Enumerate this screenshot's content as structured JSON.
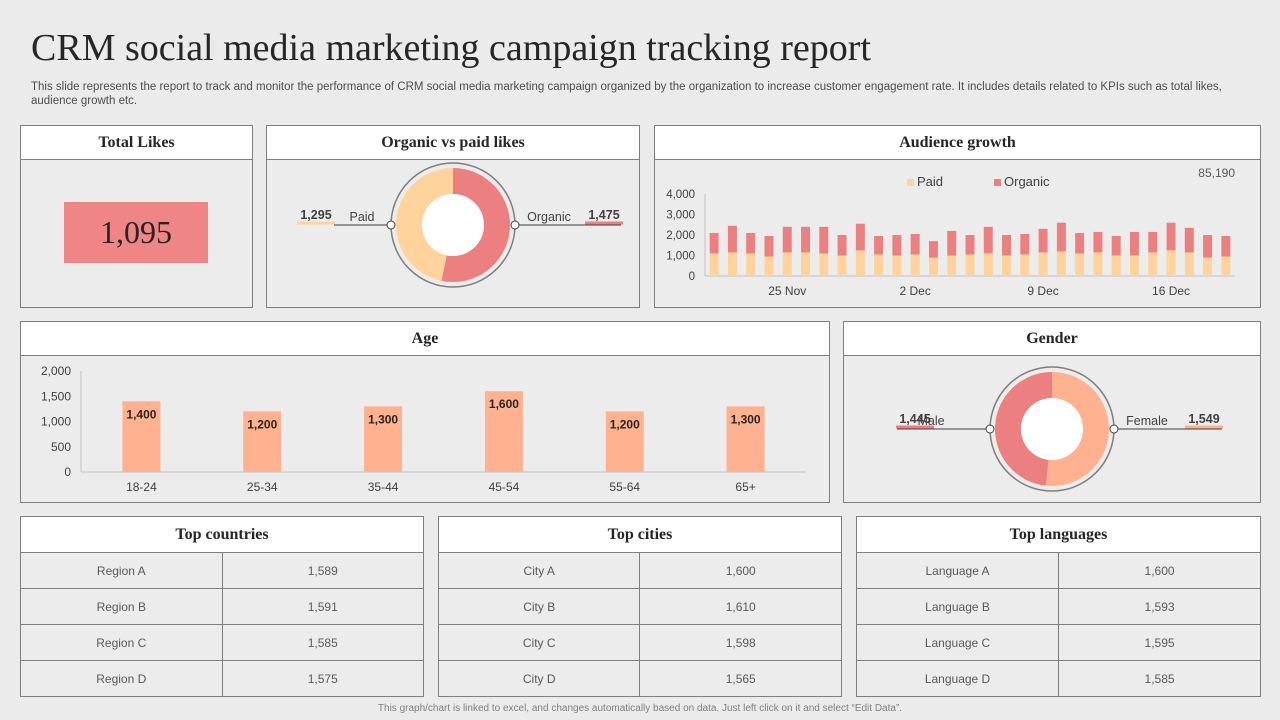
{
  "title": "CRM social media marketing campaign tracking report",
  "description": "This slide represents the report to track and monitor the performance of CRM social media marketing campaign organized by the organization to increase customer engagement rate. It includes details related to KPIs such as total likes, audience growth etc.",
  "total_likes": {
    "heading": "Total Likes",
    "value": "1,095"
  },
  "organic_vs_paid": {
    "heading": "Organic vs paid likes"
  },
  "audience_growth": {
    "heading": "Audience growth",
    "total": "85,190"
  },
  "age": {
    "heading": "Age"
  },
  "gender": {
    "heading": "Gender"
  },
  "colors": {
    "paid": "#ffd39b",
    "organic": "#ec8080",
    "age_bar": "#ffb190",
    "likes_box": "#ef8585"
  },
  "chart_data": [
    {
      "id": "organic_vs_paid",
      "type": "pie",
      "labels": [
        "Paid",
        "Organic"
      ],
      "values": [
        1295,
        1475
      ],
      "value_labels": [
        "1,295",
        "1,475"
      ]
    },
    {
      "id": "audience_growth",
      "type": "bar",
      "stacked": true,
      "legend": [
        "Paid",
        "Organic"
      ],
      "legend_position": "top",
      "x_tick_labels": [
        "25 Nov",
        "2 Dec",
        "9 Dec",
        "16 Dec"
      ],
      "series": [
        {
          "name": "Paid",
          "values": [
            1100,
            1150,
            1100,
            950,
            1150,
            1150,
            1100,
            1000,
            1250,
            1050,
            1000,
            1050,
            900,
            1000,
            1050,
            1100,
            1000,
            1050,
            1150,
            1200,
            1100,
            1150,
            1000,
            1000,
            1150,
            1250,
            1150,
            900,
            950
          ]
        },
        {
          "name": "Organic",
          "values": [
            1000,
            1300,
            1000,
            1000,
            1250,
            1250,
            1300,
            1000,
            1300,
            900,
            1000,
            1000,
            800,
            1200,
            950,
            1300,
            1000,
            1000,
            1150,
            1400,
            1000,
            1000,
            950,
            1150,
            1000,
            1350,
            1200,
            1100,
            1000
          ]
        }
      ],
      "y_tick_labels": [
        "4,000",
        "3,000",
        "2,000",
        "1,000",
        "0"
      ],
      "ylim": [
        0,
        4000
      ]
    },
    {
      "id": "age",
      "type": "bar",
      "categories": [
        "18-24",
        "25-34",
        "35-44",
        "45-54",
        "55-64",
        "65+"
      ],
      "values": [
        1400,
        1200,
        1300,
        1600,
        1200,
        1300
      ],
      "value_labels": [
        "1,400",
        "1,200",
        "1,300",
        "1,600",
        "1,200",
        "1,300"
      ],
      "y_tick_labels": [
        "2,000",
        "1,500",
        "1,000",
        "500",
        "0"
      ],
      "ylim": [
        0,
        2000
      ]
    },
    {
      "id": "gender",
      "type": "pie",
      "labels": [
        "Male",
        "Female"
      ],
      "values": [
        1445,
        1549
      ],
      "value_labels": [
        "1,445",
        "1,549"
      ]
    }
  ],
  "tables": {
    "countries": {
      "heading": "Top countries",
      "rows": [
        [
          "Region A",
          "1,589"
        ],
        [
          "Region B",
          "1,591"
        ],
        [
          "Region C",
          "1,585"
        ],
        [
          "Region D",
          "1,575"
        ]
      ]
    },
    "cities": {
      "heading": "Top cities",
      "rows": [
        [
          "City A",
          "1,600"
        ],
        [
          "City B",
          "1,610"
        ],
        [
          "City C",
          "1,598"
        ],
        [
          "City D",
          "1,565"
        ]
      ]
    },
    "languages": {
      "heading": "Top languages",
      "rows": [
        [
          "Language A",
          "1,600"
        ],
        [
          "Language B",
          "1,593"
        ],
        [
          "Language C",
          "1,595"
        ],
        [
          "Language D",
          "1,585"
        ]
      ]
    }
  },
  "footer": "This graph/chart is linked to excel, and changes automatically based on data. Just left click on it and select “Edit Data”."
}
